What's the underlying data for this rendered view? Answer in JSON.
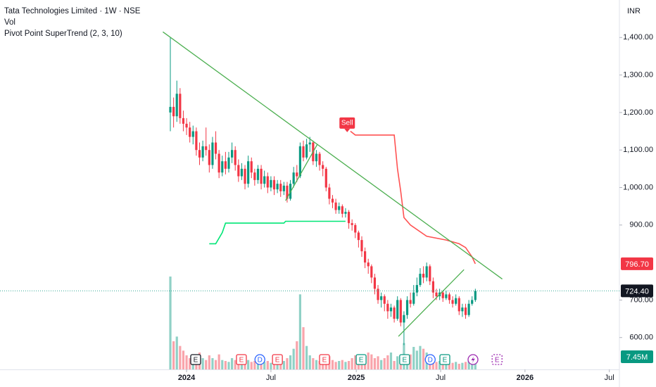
{
  "chart_data": {
    "type": "candlestick",
    "title": "Tata Technologies Limited · 1W · NSE",
    "indicators": [
      "Vol",
      "Pivot Point SuperTrend (2, 3, 10)"
    ],
    "currency": "INR",
    "x": [
      -5,
      -4,
      -3,
      -2,
      -1,
      0,
      1,
      2,
      3,
      4,
      5,
      6,
      7,
      8,
      9,
      10,
      11,
      12,
      13,
      14,
      15,
      16,
      17,
      18,
      19,
      20,
      21,
      22,
      23,
      24,
      25,
      26,
      27,
      28,
      29,
      30,
      31,
      32,
      33,
      34,
      35,
      36,
      37,
      38,
      39,
      40,
      41,
      42,
      43,
      44,
      45,
      46,
      47,
      48,
      49,
      50,
      51,
      52,
      53,
      54,
      55,
      56,
      57,
      58,
      59,
      60,
      61,
      62,
      63,
      64,
      65,
      66,
      67,
      68,
      69,
      70,
      71,
      72,
      73,
      74,
      75,
      76,
      77,
      78,
      79,
      80,
      81,
      82,
      83,
      84,
      85,
      86,
      87,
      88,
      89
    ],
    "open": [
      1200,
      1215,
      1190,
      1250,
      1185,
      1170,
      1160,
      1135,
      1150,
      1100,
      1080,
      1110,
      1100,
      1060,
      1120,
      1090,
      1040,
      1070,
      1050,
      1080,
      1100,
      1060,
      1030,
      1050,
      1010,
      1070,
      1040,
      1020,
      1050,
      1010,
      1030,
      1000,
      1020,
      995,
      1010,
      990,
      1005,
      970,
      1010,
      1040,
      1030,
      1110,
      1080,
      1115,
      1120,
      1070,
      1090,
      1060,
      1050,
      1000,
      970,
      960,
      940,
      950,
      930,
      935,
      905,
      900,
      880,
      860,
      830,
      800,
      790,
      760,
      730,
      700,
      710,
      690,
      670,
      680,
      650,
      700,
      640,
      660,
      700,
      690,
      720,
      740,
      770,
      760,
      790,
      750,
      720,
      710,
      720,
      705,
      715,
      700,
      690,
      705,
      670,
      680,
      660,
      690,
      700
    ],
    "high": [
      1400,
      1240,
      1285,
      1265,
      1205,
      1185,
      1175,
      1165,
      1160,
      1120,
      1125,
      1160,
      1115,
      1135,
      1150,
      1100,
      1085,
      1095,
      1095,
      1120,
      1110,
      1075,
      1065,
      1060,
      1085,
      1080,
      1050,
      1060,
      1060,
      1045,
      1040,
      1030,
      1030,
      1020,
      1020,
      1015,
      1015,
      1020,
      1055,
      1060,
      1120,
      1125,
      1130,
      1135,
      1125,
      1100,
      1095,
      1070,
      1055,
      1010,
      980,
      970,
      960,
      955,
      945,
      940,
      915,
      905,
      885,
      870,
      840,
      810,
      795,
      770,
      740,
      720,
      715,
      700,
      690,
      685,
      710,
      705,
      670,
      710,
      720,
      740,
      760,
      785,
      790,
      800,
      795,
      760,
      730,
      730,
      725,
      725,
      720,
      710,
      715,
      710,
      690,
      690,
      700,
      710,
      730
    ],
    "low": [
      1150,
      1160,
      1175,
      1170,
      1150,
      1140,
      1120,
      1115,
      1085,
      1060,
      1070,
      1085,
      1040,
      1050,
      1075,
      1025,
      1030,
      1035,
      1040,
      1065,
      1045,
      1015,
      1020,
      995,
      1000,
      1025,
      1005,
      1010,
      995,
      1000,
      985,
      990,
      980,
      985,
      975,
      980,
      960,
      965,
      1000,
      1015,
      1025,
      1070,
      1075,
      1095,
      1060,
      1055,
      1045,
      1030,
      990,
      955,
      945,
      930,
      930,
      920,
      920,
      890,
      885,
      865,
      840,
      815,
      785,
      770,
      745,
      715,
      690,
      680,
      670,
      650,
      655,
      640,
      645,
      630,
      580,
      650,
      680,
      685,
      710,
      735,
      745,
      750,
      740,
      705,
      700,
      700,
      695,
      700,
      690,
      680,
      685,
      660,
      655,
      650,
      655,
      685,
      695
    ],
    "close": [
      1215,
      1190,
      1250,
      1185,
      1170,
      1160,
      1135,
      1150,
      1100,
      1080,
      1110,
      1100,
      1060,
      1120,
      1090,
      1040,
      1070,
      1050,
      1080,
      1100,
      1060,
      1030,
      1050,
      1010,
      1070,
      1040,
      1020,
      1050,
      1010,
      1030,
      1000,
      1020,
      995,
      1010,
      990,
      1005,
      970,
      1010,
      1040,
      1030,
      1110,
      1080,
      1115,
      1120,
      1070,
      1090,
      1060,
      1050,
      1000,
      970,
      960,
      940,
      950,
      930,
      935,
      905,
      900,
      880,
      860,
      830,
      800,
      790,
      760,
      730,
      700,
      710,
      690,
      670,
      680,
      650,
      700,
      640,
      660,
      700,
      690,
      720,
      740,
      770,
      760,
      790,
      750,
      720,
      710,
      720,
      705,
      715,
      700,
      690,
      705,
      670,
      680,
      660,
      690,
      700,
      724.4
    ],
    "volume": [
      99,
      30,
      35,
      25,
      20,
      15,
      12,
      10,
      14,
      18,
      12,
      10,
      15,
      12,
      10,
      16,
      10,
      9,
      8,
      12,
      10,
      14,
      9,
      12,
      10,
      8,
      9,
      7,
      11,
      8,
      9,
      7,
      8,
      6,
      10,
      9,
      12,
      15,
      22,
      30,
      80,
      45,
      25,
      15,
      12,
      10,
      9,
      8,
      12,
      14,
      10,
      8,
      9,
      10,
      8,
      9,
      12,
      15,
      10,
      11,
      14,
      18,
      16,
      12,
      14,
      10,
      12,
      15,
      18,
      9,
      14,
      12,
      28,
      10,
      16,
      24,
      20,
      25,
      22,
      18,
      12,
      10,
      8,
      9,
      7,
      8,
      6,
      7,
      8,
      6,
      7,
      8,
      9,
      10,
      7.45
    ],
    "up_color": "#089981",
    "down_color": "#f23645",
    "xlim": [
      -57.5,
      133.4
    ],
    "xticks": [
      {
        "value": 0,
        "label": "2024"
      },
      {
        "value": 26,
        "label": "Jul"
      },
      {
        "value": 52.3,
        "label": "2025"
      },
      {
        "value": 78.3,
        "label": "Jul"
      },
      {
        "value": 104.3,
        "label": "2026"
      },
      {
        "value": 130.3,
        "label": "Jul"
      }
    ],
    "ylim": [
      515,
      1500
    ],
    "yticks": [
      {
        "value": 1400,
        "label": "1,400.00"
      },
      {
        "value": 1300,
        "label": "1,300.00"
      },
      {
        "value": 1200,
        "label": "1,200.00"
      },
      {
        "value": 1100,
        "label": "1,100.00"
      },
      {
        "value": 1000,
        "label": "1,000.00"
      },
      {
        "value": 900,
        "label": "900.00"
      },
      {
        "value": 700,
        "label": "700.00"
      },
      {
        "value": 600,
        "label": "600.00"
      }
    ],
    "supertrend": [
      {
        "color": "#00e676",
        "x": [
          7,
          9,
          11,
          12,
          30,
          30.5,
          49
        ],
        "values": [
          850,
          850,
          880,
          905,
          905,
          910,
          910
        ]
      },
      {
        "color": "#ff5252",
        "x": [
          50.5,
          52,
          53,
          64,
          65,
          66,
          67,
          69,
          74,
          80,
          84,
          86,
          88,
          89
        ],
        "values": [
          1150,
          1140,
          1140,
          1140,
          1050,
          990,
          920,
          900,
          870,
          860,
          850,
          840,
          815,
          796.7
        ]
      }
    ],
    "signal": {
      "label": "Sell",
      "x": 49.5,
      "value": 1170,
      "color": "#f23645"
    },
    "trendline_color": "#4caf50",
    "trendlines": [
      {
        "x": [
          -7.3,
          97.3
        ],
        "values": [
          1415,
          756
        ]
      },
      {
        "x": [
          30.5,
          40.3
        ],
        "values": [
          965,
          1115
        ]
      },
      {
        "x": [
          65.3,
          85.5
        ],
        "values": [
          603,
          781
        ]
      }
    ],
    "events": [
      {
        "x": 2.8,
        "label": "E",
        "color": "#131722",
        "shape": "square"
      },
      {
        "x": 16.9,
        "label": "E",
        "color": "#f23645",
        "shape": "square"
      },
      {
        "x": 22.6,
        "label": "D",
        "color": "#2962ff",
        "shape": "circle"
      },
      {
        "x": 28,
        "label": "E",
        "color": "#f23645",
        "shape": "square"
      },
      {
        "x": 42.5,
        "label": "E",
        "color": "#f23645",
        "shape": "square"
      },
      {
        "x": 53.8,
        "label": "E",
        "color": "#089981",
        "shape": "square"
      },
      {
        "x": 67.2,
        "label": "E",
        "color": "#089981",
        "shape": "square"
      },
      {
        "x": 75.1,
        "label": "D",
        "color": "#2962ff",
        "shape": "circle"
      },
      {
        "x": 79.6,
        "label": "E",
        "color": "#089981",
        "shape": "square"
      },
      {
        "x": 95.7,
        "label": "E",
        "color": "#9c27b0",
        "shape": "square"
      }
    ],
    "price_labels": [
      {
        "value": 796.7,
        "label": "796.70",
        "color": "#f23645"
      },
      {
        "value": 724.4,
        "label": "724.40",
        "color": "#131722"
      }
    ],
    "volume_label": {
      "value": 7.45,
      "label": "7.45M",
      "color": "#089981"
    }
  }
}
